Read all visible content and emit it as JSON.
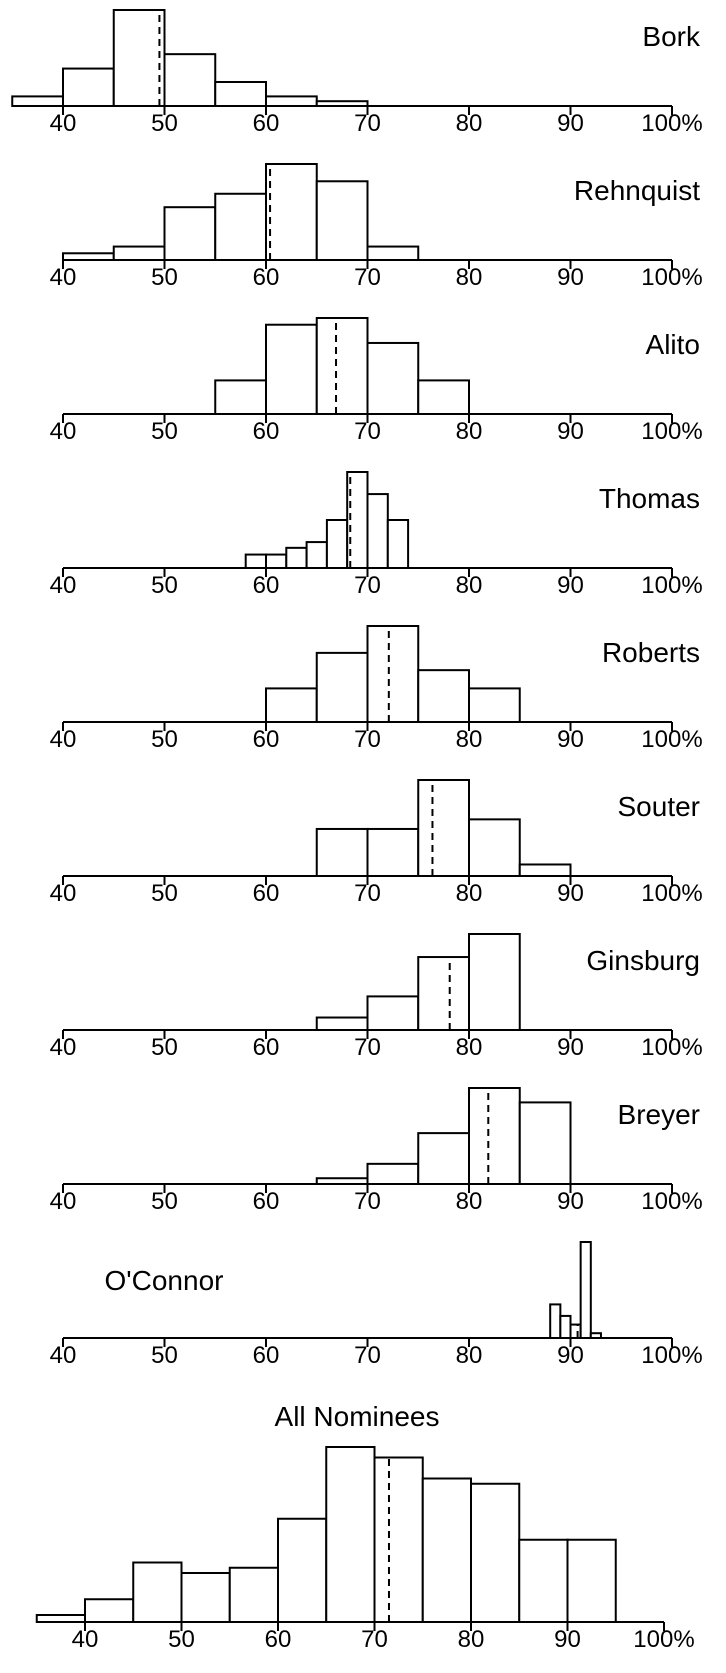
{
  "chart_data": [
    {
      "type": "bar",
      "title": "Bork",
      "bin_edges": [
        35,
        40,
        45,
        50,
        55,
        60,
        65,
        70
      ],
      "values": [
        1.0,
        3.9,
        10.0,
        5.4,
        2.5,
        1.0,
        0.5
      ],
      "mean": 49.5,
      "xlim": [
        40,
        100
      ],
      "ticks": [
        "40",
        "50",
        "60",
        "70",
        "80",
        "90",
        "100%"
      ]
    },
    {
      "type": "bar",
      "title": "Rehnquist",
      "bin_edges": [
        40,
        45,
        50,
        55,
        60,
        65,
        70,
        75
      ],
      "values": [
        0.7,
        1.4,
        5.5,
        6.9,
        10.0,
        8.2,
        1.4
      ],
      "mean": 60.4,
      "xlim": [
        40,
        100
      ],
      "ticks": [
        "40",
        "50",
        "60",
        "70",
        "80",
        "90",
        "100%"
      ]
    },
    {
      "type": "bar",
      "title": "Alito",
      "bin_edges": [
        55,
        60,
        65,
        70,
        75,
        80
      ],
      "values": [
        3.5,
        9.3,
        10.0,
        7.4,
        3.5
      ],
      "mean": 66.9,
      "xlim": [
        40,
        100
      ],
      "ticks": [
        "40",
        "50",
        "60",
        "70",
        "80",
        "90",
        "100%"
      ]
    },
    {
      "type": "bar",
      "title": "Thomas",
      "bin_edges": [
        58,
        60,
        62,
        64,
        66,
        68,
        70,
        72,
        74
      ],
      "values": [
        1.4,
        1.4,
        2.1,
        2.7,
        5.0,
        10.0,
        7.7,
        5.0
      ],
      "mean": 68.3,
      "xlim": [
        40,
        100
      ],
      "ticks": [
        "40",
        "50",
        "60",
        "70",
        "80",
        "90",
        "100%"
      ]
    },
    {
      "type": "bar",
      "title": "Roberts",
      "bin_edges": [
        60,
        65,
        70,
        75,
        80,
        85
      ],
      "values": [
        3.5,
        7.2,
        10.0,
        5.4,
        3.5
      ],
      "mean": 72.1,
      "xlim": [
        40,
        100
      ],
      "ticks": [
        "40",
        "50",
        "60",
        "70",
        "80",
        "90",
        "100%"
      ]
    },
    {
      "type": "bar",
      "title": "Souter",
      "bin_edges": [
        65,
        70,
        75,
        80,
        85,
        90
      ],
      "values": [
        4.9,
        4.9,
        10.0,
        5.9,
        1.2
      ],
      "mean": 76.4,
      "xlim": [
        40,
        100
      ],
      "ticks": [
        "40",
        "50",
        "60",
        "70",
        "80",
        "90",
        "100%"
      ]
    },
    {
      "type": "bar",
      "title": "Ginsburg",
      "bin_edges": [
        65,
        70,
        75,
        80,
        85
      ],
      "values": [
        1.3,
        3.5,
        7.6,
        10.0
      ],
      "mean": 78.1,
      "xlim": [
        40,
        100
      ],
      "ticks": [
        "40",
        "50",
        "60",
        "70",
        "80",
        "90",
        "100%"
      ]
    },
    {
      "type": "bar",
      "title": "Breyer",
      "bin_edges": [
        65,
        70,
        75,
        80,
        85,
        90
      ],
      "values": [
        0.6,
        2.1,
        5.3,
        10.0,
        8.5
      ],
      "mean": 81.9,
      "xlim": [
        40,
        100
      ],
      "ticks": [
        "40",
        "50",
        "60",
        "70",
        "80",
        "90",
        "100%"
      ]
    },
    {
      "type": "bar",
      "title": "O'Connor",
      "bin_edges": [
        88,
        89,
        90,
        91,
        92,
        93
      ],
      "values": [
        3.5,
        2.3,
        1.4,
        10.0,
        0.5
      ],
      "mean": 90.7,
      "xlim": [
        40,
        100
      ],
      "ticks": [
        "40",
        "50",
        "60",
        "70",
        "80",
        "90",
        "100%"
      ]
    },
    {
      "type": "bar",
      "title": "All Nominees",
      "bin_edges": [
        35,
        40,
        45,
        50,
        55,
        60,
        65,
        70,
        75,
        80,
        85,
        90,
        95
      ],
      "values": [
        0.4,
        1.3,
        3.4,
        2.8,
        3.1,
        5.9,
        10.0,
        9.4,
        8.2,
        7.9,
        4.7,
        4.7
      ],
      "mean": 71.5,
      "xlim": [
        40,
        100
      ],
      "ticks": [
        "40",
        "50",
        "60",
        "70",
        "80",
        "90",
        "100%"
      ]
    }
  ]
}
